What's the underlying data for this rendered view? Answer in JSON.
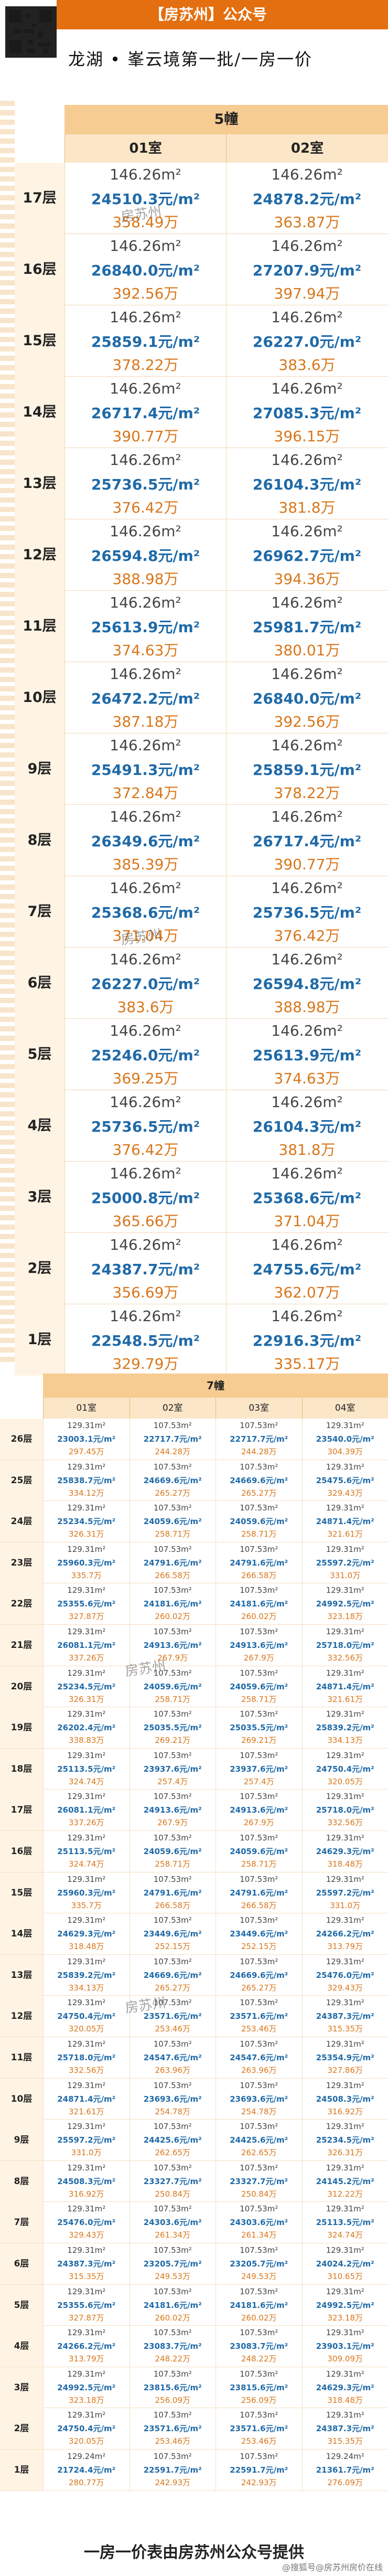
{
  "header": {
    "title": "【房苏州】公众号",
    "subtitle": "龙湖 • 峯云境第一批/一房一价"
  },
  "building5": {
    "name": "5幢",
    "columns": [
      "01室",
      "02室"
    ],
    "rows": [
      {
        "floor": "17层",
        "c1": {
          "area": "146.26m²",
          "unit": "24510.3元/m²",
          "total": "358.49万"
        },
        "c2": {
          "area": "146.26m²",
          "unit": "24878.2元/m²",
          "total": "363.87万"
        }
      },
      {
        "floor": "16层",
        "c1": {
          "area": "146.26m²",
          "unit": "26840.0元/m²",
          "total": "392.56万"
        },
        "c2": {
          "area": "146.26m²",
          "unit": "27207.9元/m²",
          "total": "397.94万"
        }
      },
      {
        "floor": "15层",
        "c1": {
          "area": "146.26m²",
          "unit": "25859.1元/m²",
          "total": "378.22万"
        },
        "c2": {
          "area": "146.26m²",
          "unit": "26227.0元/m²",
          "total": "383.6万"
        }
      },
      {
        "floor": "14层",
        "c1": {
          "area": "146.26m²",
          "unit": "26717.4元/m²",
          "total": "390.77万"
        },
        "c2": {
          "area": "146.26m²",
          "unit": "27085.3元/m²",
          "total": "396.15万"
        }
      },
      {
        "floor": "13层",
        "c1": {
          "area": "146.26m²",
          "unit": "25736.5元/m²",
          "total": "376.42万"
        },
        "c2": {
          "area": "146.26m²",
          "unit": "26104.3元/m²",
          "total": "381.8万"
        }
      },
      {
        "floor": "12层",
        "c1": {
          "area": "146.26m²",
          "unit": "26594.8元/m²",
          "total": "388.98万"
        },
        "c2": {
          "area": "146.26m²",
          "unit": "26962.7元/m²",
          "total": "394.36万"
        }
      },
      {
        "floor": "11层",
        "c1": {
          "area": "146.26m²",
          "unit": "25613.9元/m²",
          "total": "374.63万"
        },
        "c2": {
          "area": "146.26m²",
          "unit": "25981.7元/m²",
          "total": "380.01万"
        }
      },
      {
        "floor": "10层",
        "c1": {
          "area": "146.26m²",
          "unit": "26472.2元/m²",
          "total": "387.18万"
        },
        "c2": {
          "area": "146.26m²",
          "unit": "26840.0元/m²",
          "total": "392.56万"
        }
      },
      {
        "floor": "9层",
        "c1": {
          "area": "146.26m²",
          "unit": "25491.3元/m²",
          "total": "372.84万"
        },
        "c2": {
          "area": "146.26m²",
          "unit": "25859.1元/m²",
          "total": "378.22万"
        }
      },
      {
        "floor": "8层",
        "c1": {
          "area": "146.26m²",
          "unit": "26349.6元/m²",
          "total": "385.39万"
        },
        "c2": {
          "area": "146.26m²",
          "unit": "26717.4元/m²",
          "total": "390.77万"
        }
      },
      {
        "floor": "7层",
        "c1": {
          "area": "146.26m²",
          "unit": "25368.6元/m²",
          "total": "371.04万"
        },
        "c2": {
          "area": "146.26m²",
          "unit": "25736.5元/m²",
          "total": "376.42万"
        }
      },
      {
        "floor": "6层",
        "c1": {
          "area": "146.26m²",
          "unit": "26227.0元/m²",
          "total": "383.6万"
        },
        "c2": {
          "area": "146.26m²",
          "unit": "26594.8元/m²",
          "total": "388.98万"
        }
      },
      {
        "floor": "5层",
        "c1": {
          "area": "146.26m²",
          "unit": "25246.0元/m²",
          "total": "369.25万"
        },
        "c2": {
          "area": "146.26m²",
          "unit": "25613.9元/m²",
          "total": "374.63万"
        }
      },
      {
        "floor": "4层",
        "c1": {
          "area": "146.26m²",
          "unit": "25736.5元/m²",
          "total": "376.42万"
        },
        "c2": {
          "area": "146.26m²",
          "unit": "26104.3元/m²",
          "total": "381.8万"
        }
      },
      {
        "floor": "3层",
        "c1": {
          "area": "146.26m²",
          "unit": "25000.8元/m²",
          "total": "365.66万"
        },
        "c2": {
          "area": "146.26m²",
          "unit": "25368.6元/m²",
          "total": "371.04万"
        }
      },
      {
        "floor": "2层",
        "c1": {
          "area": "146.26m²",
          "unit": "24387.7元/m²",
          "total": "356.69万"
        },
        "c2": {
          "area": "146.26m²",
          "unit": "24755.6元/m²",
          "total": "362.07万"
        }
      },
      {
        "floor": "1层",
        "c1": {
          "area": "146.26m²",
          "unit": "22548.5元/m²",
          "total": "329.79万"
        },
        "c2": {
          "area": "146.26m²",
          "unit": "22916.3元/m²",
          "total": "335.17万"
        }
      }
    ]
  },
  "building7": {
    "name": "7幢",
    "columns": [
      "01室",
      "02室",
      "03室",
      "04室"
    ],
    "rows": [
      {
        "floor": "26层",
        "cells": [
          [
            "129.31m²",
            "23003.1元/m²",
            "297.45万"
          ],
          [
            "107.53m²",
            "22717.7元/m²",
            "244.28万"
          ],
          [
            "107.53m²",
            "22717.7元/m²",
            "244.28万"
          ],
          [
            "129.31m²",
            "23540.0元/m²",
            "304.39万"
          ]
        ]
      },
      {
        "floor": "25层",
        "cells": [
          [
            "129.31m²",
            "25838.7元/m²",
            "334.12万"
          ],
          [
            "107.53m²",
            "24669.6元/m²",
            "265.27万"
          ],
          [
            "107.53m²",
            "24669.6元/m²",
            "265.27万"
          ],
          [
            "129.31m²",
            "25475.6元/m²",
            "329.43万"
          ]
        ]
      },
      {
        "floor": "24层",
        "cells": [
          [
            "129.31m²",
            "25234.5元/m²",
            "326.31万"
          ],
          [
            "107.53m²",
            "24059.6元/m²",
            "258.71万"
          ],
          [
            "107.53m²",
            "24059.6元/m²",
            "258.71万"
          ],
          [
            "129.31m²",
            "24871.4元/m²",
            "321.61万"
          ]
        ]
      },
      {
        "floor": "23层",
        "cells": [
          [
            "129.31m²",
            "25960.3元/m²",
            "335.7万"
          ],
          [
            "107.53m²",
            "24791.6元/m²",
            "266.58万"
          ],
          [
            "107.53m²",
            "24791.6元/m²",
            "266.58万"
          ],
          [
            "129.31m²",
            "25597.2元/m²",
            "331.0万"
          ]
        ]
      },
      {
        "floor": "22层",
        "cells": [
          [
            "129.31m²",
            "25355.6元/m²",
            "327.87万"
          ],
          [
            "107.53m²",
            "24181.6元/m²",
            "260.02万"
          ],
          [
            "107.53m²",
            "24181.6元/m²",
            "260.02万"
          ],
          [
            "129.31m²",
            "24992.5元/m²",
            "323.18万"
          ]
        ]
      },
      {
        "floor": "21层",
        "cells": [
          [
            "129.31m²",
            "26081.1元/m²",
            "337.26万"
          ],
          [
            "107.53m²",
            "24913.6元/m²",
            "267.9万"
          ],
          [
            "107.53m²",
            "24913.6元/m²",
            "267.9万"
          ],
          [
            "129.31m²",
            "25718.0元/m²",
            "332.56万"
          ]
        ]
      },
      {
        "floor": "20层",
        "cells": [
          [
            "129.31m²",
            "25234.5元/m²",
            "326.31万"
          ],
          [
            "107.53m²",
            "24059.6元/m²",
            "258.71万"
          ],
          [
            "107.53m²",
            "24059.6元/m²",
            "258.71万"
          ],
          [
            "129.31m²",
            "24871.4元/m²",
            "321.61万"
          ]
        ]
      },
      {
        "floor": "19层",
        "cells": [
          [
            "129.31m²",
            "26202.4元/m²",
            "338.83万"
          ],
          [
            "107.53m²",
            "25035.5元/m²",
            "269.21万"
          ],
          [
            "107.53m²",
            "25035.5元/m²",
            "269.21万"
          ],
          [
            "129.31m²",
            "25839.2元/m²",
            "334.13万"
          ]
        ]
      },
      {
        "floor": "18层",
        "cells": [
          [
            "129.31m²",
            "25113.5元/m²",
            "324.74万"
          ],
          [
            "107.53m²",
            "23937.6元/m²",
            "257.4万"
          ],
          [
            "107.53m²",
            "23937.6元/m²",
            "257.4万"
          ],
          [
            "129.31m²",
            "24750.4元/m²",
            "320.05万"
          ]
        ]
      },
      {
        "floor": "17层",
        "cells": [
          [
            "129.31m²",
            "26081.1元/m²",
            "337.26万"
          ],
          [
            "107.53m²",
            "24913.6元/m²",
            "267.9万"
          ],
          [
            "107.53m²",
            "24913.6元/m²",
            "267.9万"
          ],
          [
            "129.31m²",
            "25718.0元/m²",
            "332.56万"
          ]
        ]
      },
      {
        "floor": "16层",
        "cells": [
          [
            "129.31m²",
            "25113.5元/m²",
            "324.74万"
          ],
          [
            "107.53m²",
            "24059.6元/m²",
            "258.71万"
          ],
          [
            "107.53m²",
            "24059.6元/m²",
            "258.71万"
          ],
          [
            "129.31m²",
            "24629.3元/m²",
            "318.48万"
          ]
        ]
      },
      {
        "floor": "15层",
        "cells": [
          [
            "129.31m²",
            "25960.3元/m²",
            "335.7万"
          ],
          [
            "107.53m²",
            "24791.6元/m²",
            "266.58万"
          ],
          [
            "107.53m²",
            "24791.6元/m²",
            "266.58万"
          ],
          [
            "129.31m²",
            "25597.2元/m²",
            "331.0万"
          ]
        ]
      },
      {
        "floor": "14层",
        "cells": [
          [
            "129.31m²",
            "24629.3元/m²",
            "318.48万"
          ],
          [
            "107.53m²",
            "23449.6元/m²",
            "252.15万"
          ],
          [
            "107.53m²",
            "23449.6元/m²",
            "252.15万"
          ],
          [
            "129.31m²",
            "24266.2元/m²",
            "313.79万"
          ]
        ]
      },
      {
        "floor": "13层",
        "cells": [
          [
            "129.31m²",
            "25839.2元/m²",
            "334.13万"
          ],
          [
            "107.53m²",
            "24669.6元/m²",
            "265.27万"
          ],
          [
            "107.53m²",
            "24669.6元/m²",
            "265.27万"
          ],
          [
            "129.31m²",
            "25476.0元/m²",
            "329.43万"
          ]
        ]
      },
      {
        "floor": "12层",
        "cells": [
          [
            "129.31m²",
            "24750.4元/m²",
            "320.05万"
          ],
          [
            "107.53m²",
            "23571.6元/m²",
            "253.46万"
          ],
          [
            "107.53m²",
            "23571.6元/m²",
            "253.46万"
          ],
          [
            "129.31m²",
            "24387.3元/m²",
            "315.35万"
          ]
        ]
      },
      {
        "floor": "11层",
        "cells": [
          [
            "129.31m²",
            "25718.0元/m²",
            "332.56万"
          ],
          [
            "107.53m²",
            "24547.6元/m²",
            "263.96万"
          ],
          [
            "107.53m²",
            "24547.6元/m²",
            "263.96万"
          ],
          [
            "129.31m²",
            "25354.9元/m²",
            "327.86万"
          ]
        ]
      },
      {
        "floor": "10层",
        "cells": [
          [
            "129.31m²",
            "24871.4元/m²",
            "321.61万"
          ],
          [
            "107.53m²",
            "23693.6元/m²",
            "254.78万"
          ],
          [
            "107.53m²",
            "23693.6元/m²",
            "254.78万"
          ],
          [
            "129.31m²",
            "24508.3元/m²",
            "316.92万"
          ]
        ]
      },
      {
        "floor": "9层",
        "cells": [
          [
            "129.31m²",
            "25597.2元/m²",
            "331.0万"
          ],
          [
            "107.53m²",
            "24425.6元/m²",
            "262.65万"
          ],
          [
            "107.53m²",
            "24425.6元/m²",
            "262.65万"
          ],
          [
            "129.31m²",
            "25234.5元/m²",
            "326.31万"
          ]
        ]
      },
      {
        "floor": "8层",
        "cells": [
          [
            "129.31m²",
            "24508.3元/m²",
            "316.92万"
          ],
          [
            "107.53m²",
            "23327.7元/m²",
            "250.84万"
          ],
          [
            "107.53m²",
            "23327.7元/m²",
            "250.84万"
          ],
          [
            "129.31m²",
            "24145.2元/m²",
            "312.22万"
          ]
        ]
      },
      {
        "floor": "7层",
        "cells": [
          [
            "129.31m²",
            "25476.0元/m²",
            "329.43万"
          ],
          [
            "107.53m²",
            "24303.6元/m²",
            "261.34万"
          ],
          [
            "107.53m²",
            "24303.6元/m²",
            "261.34万"
          ],
          [
            "129.31m²",
            "25113.5元/m²",
            "324.74万"
          ]
        ]
      },
      {
        "floor": "6层",
        "cells": [
          [
            "129.31m²",
            "24387.3元/m²",
            "315.35万"
          ],
          [
            "107.53m²",
            "23205.7元/m²",
            "249.53万"
          ],
          [
            "107.53m²",
            "23205.7元/m²",
            "249.53万"
          ],
          [
            "129.31m²",
            "24024.2元/m²",
            "310.65万"
          ]
        ]
      },
      {
        "floor": "5层",
        "cells": [
          [
            "129.31m²",
            "25355.6元/m²",
            "327.87万"
          ],
          [
            "107.53m²",
            "24181.6元/m²",
            "260.02万"
          ],
          [
            "107.53m²",
            "24181.6元/m²",
            "260.02万"
          ],
          [
            "129.31m²",
            "24992.5元/m²",
            "323.18万"
          ]
        ]
      },
      {
        "floor": "4层",
        "cells": [
          [
            "129.31m²",
            "24266.2元/m²",
            "313.79万"
          ],
          [
            "107.53m²",
            "23083.7元/m²",
            "248.22万"
          ],
          [
            "107.53m²",
            "23083.7元/m²",
            "248.22万"
          ],
          [
            "129.31m²",
            "23903.1元/m²",
            "309.09万"
          ]
        ]
      },
      {
        "floor": "3层",
        "cells": [
          [
            "129.31m²",
            "24992.5元/m²",
            "323.18万"
          ],
          [
            "107.53m²",
            "23815.6元/m²",
            "256.09万"
          ],
          [
            "107.53m²",
            "23815.6元/m²",
            "256.09万"
          ],
          [
            "129.31m²",
            "24629.3元/m²",
            "318.48万"
          ]
        ]
      },
      {
        "floor": "2层",
        "cells": [
          [
            "129.31m²",
            "24750.4元/m²",
            "320.05万"
          ],
          [
            "107.53m²",
            "23571.6元/m²",
            "253.46万"
          ],
          [
            "107.53m²",
            "23571.6元/m²",
            "253.46万"
          ],
          [
            "129.31m²",
            "24387.3元/m²",
            "315.35万"
          ]
        ]
      },
      {
        "floor": "1层",
        "cells": [
          [
            "129.24m²",
            "21724.4元/m²",
            "280.77万"
          ],
          [
            "107.53m²",
            "22591.7元/m²",
            "242.93万"
          ],
          [
            "107.53m²",
            "22591.7元/m²",
            "242.93万"
          ],
          [
            "129.24m²",
            "21361.7元/m²",
            "276.09万"
          ]
        ]
      }
    ]
  },
  "watermark": "房苏州",
  "footer": {
    "text": "一房一价表由房苏州公众号提供",
    "note": "@搜狐号@房苏州房价在线"
  }
}
